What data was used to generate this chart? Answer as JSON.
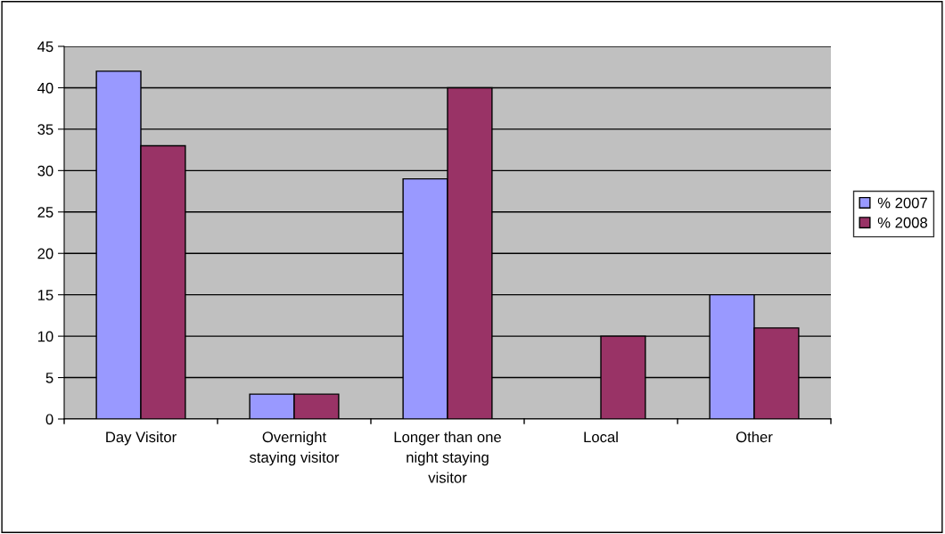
{
  "chart_data": {
    "type": "bar",
    "categories": [
      "Day Visitor",
      "Overnight\nstaying visitor",
      "Longer than one\nnight staying\nvisitor",
      "Local",
      "Other"
    ],
    "series": [
      {
        "name": "% 2007",
        "color": "#9999ff",
        "values": [
          42,
          3,
          29,
          null,
          15
        ]
      },
      {
        "name": "% 2008",
        "color": "#993366",
        "values": [
          33,
          3,
          40,
          10,
          11
        ]
      }
    ],
    "ylim": [
      0,
      45
    ],
    "yticks": [
      0,
      5,
      10,
      15,
      20,
      25,
      30,
      35,
      40,
      45
    ],
    "grid": "y",
    "legend": "right"
  }
}
